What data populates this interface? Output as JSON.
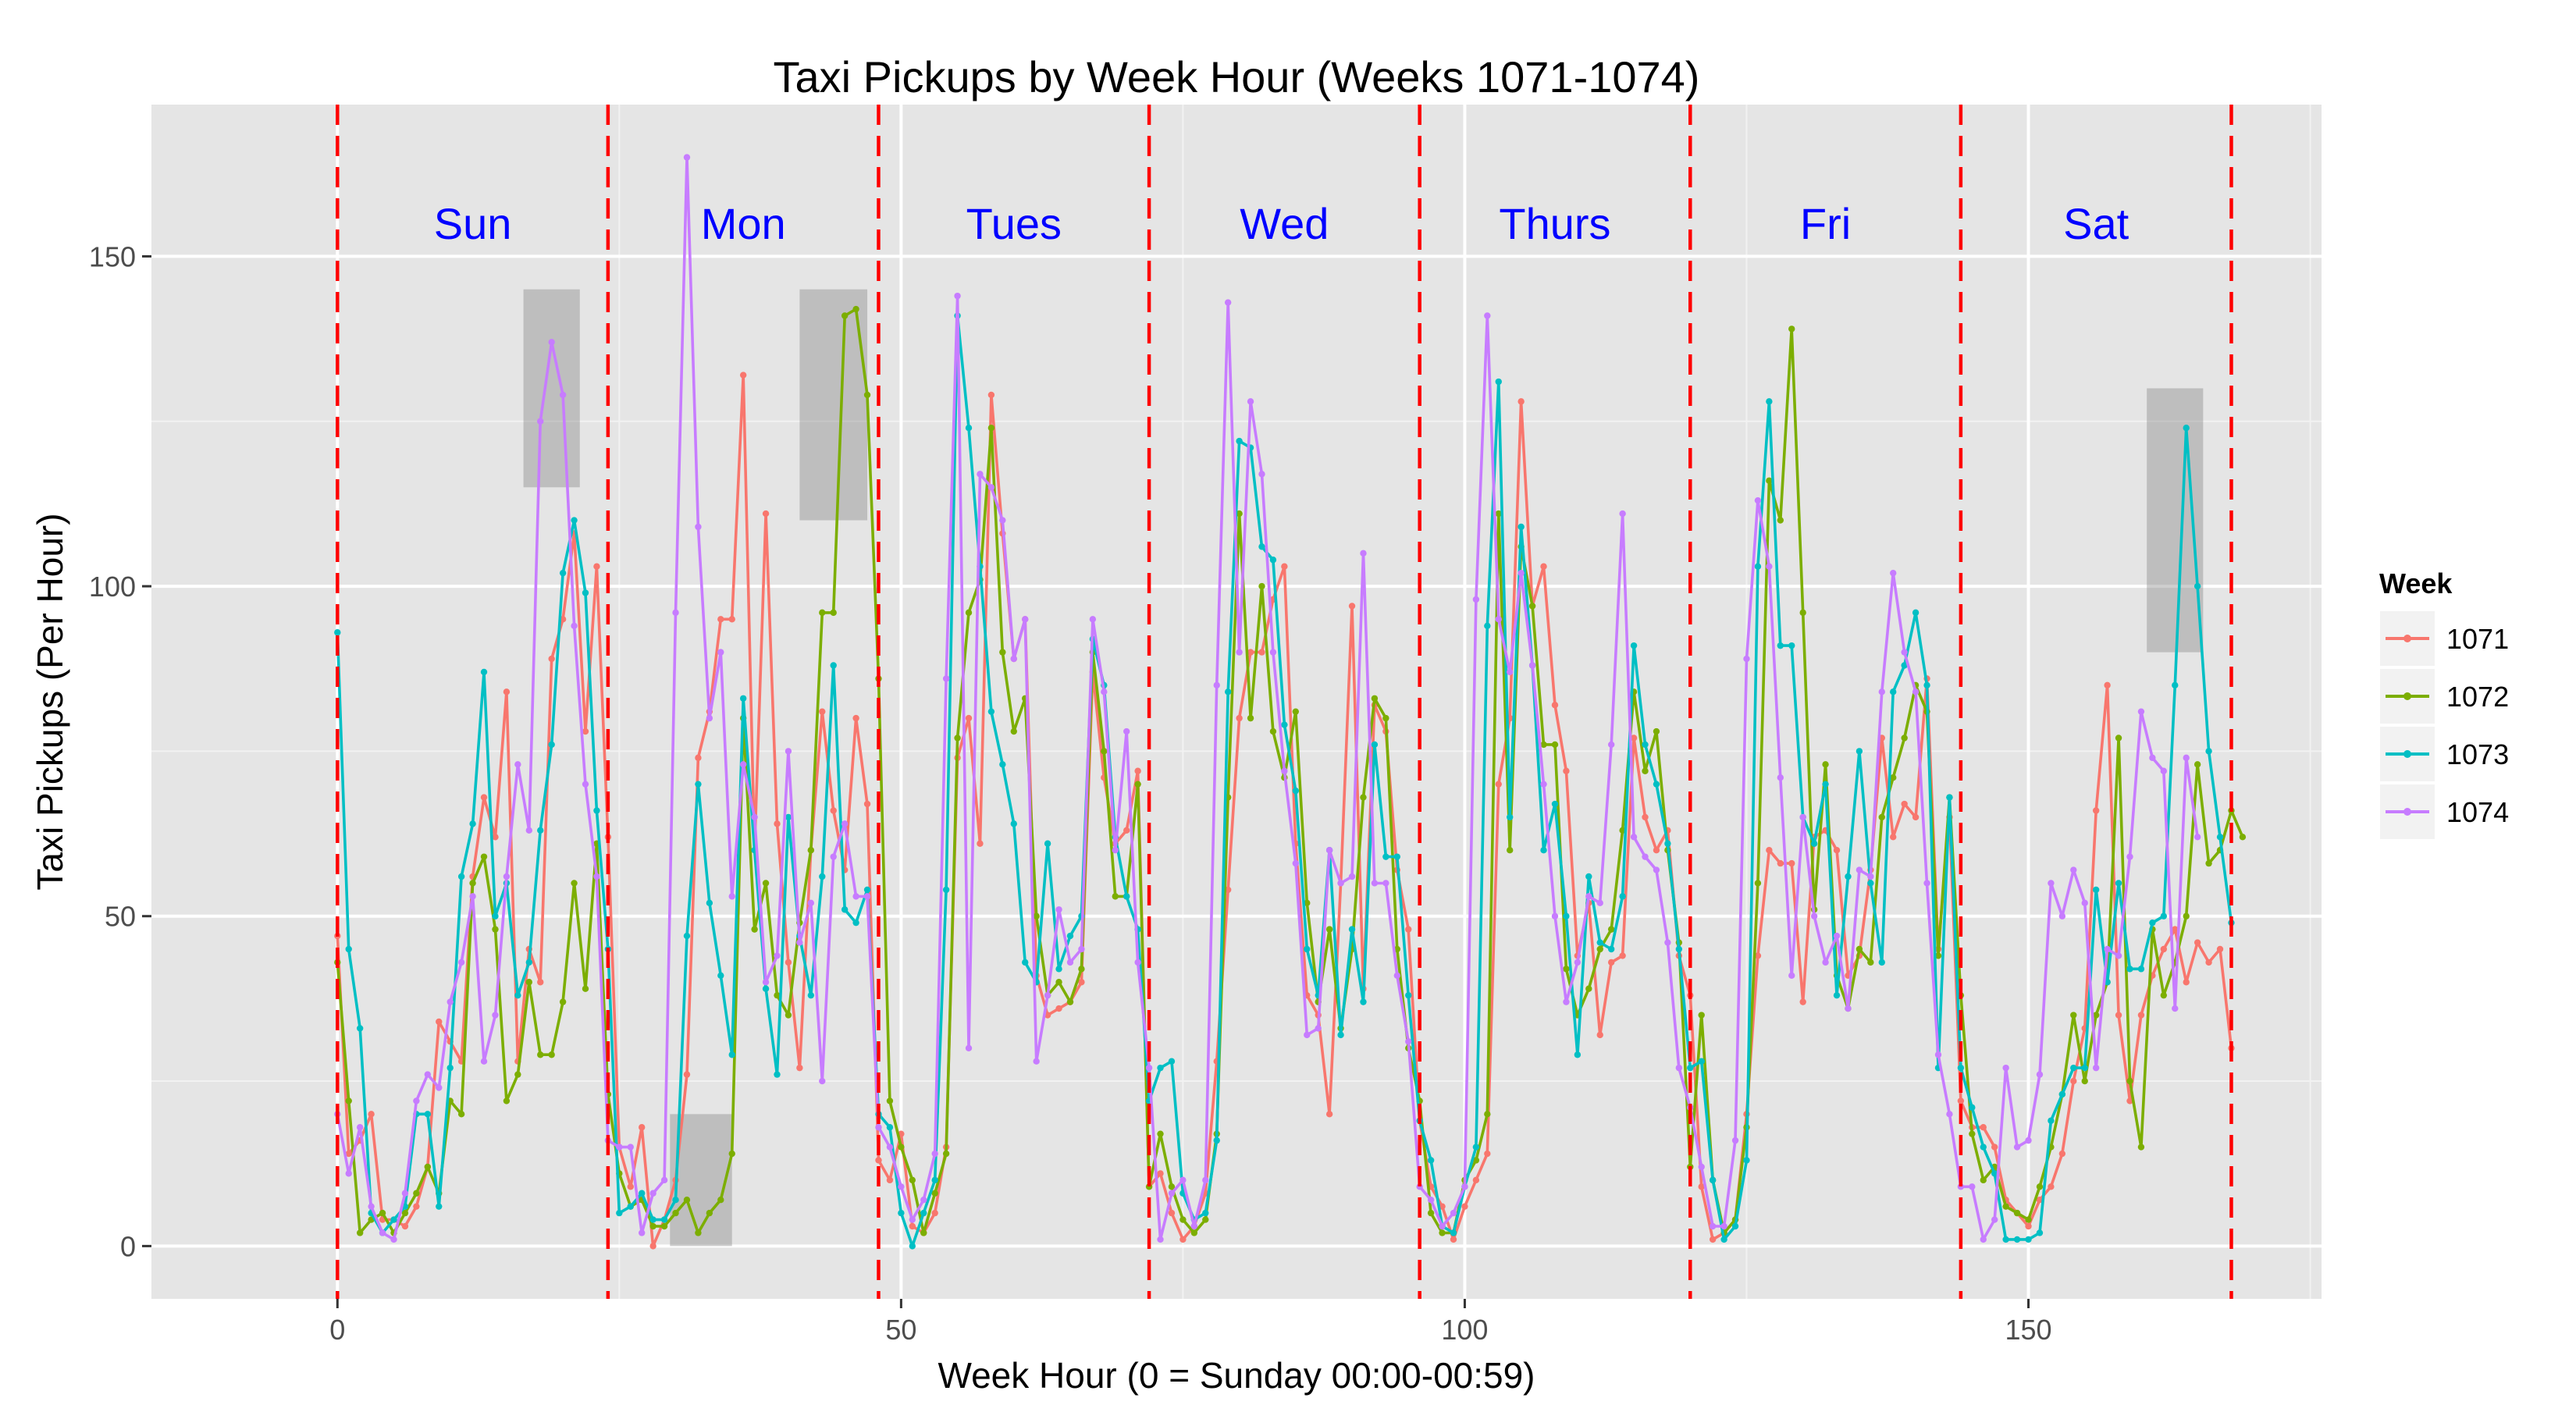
{
  "chart_data": {
    "type": "line",
    "title": "Taxi Pickups by Week Hour (Weeks 1071-1074)",
    "xlabel": "Week Hour (0 = Sunday 00:00-00:59)",
    "ylabel": "Taxi Pickups (Per Hour)",
    "xlim": [
      -16.5,
      176
    ],
    "ylim": [
      -8,
      173
    ],
    "xticks": [
      0,
      50,
      100,
      150
    ],
    "yticks": [
      0,
      50,
      100,
      150
    ],
    "grid": true,
    "background": "#E5E5E5",
    "legend": {
      "title": "Week",
      "position": "right"
    },
    "day_dividers": [
      0,
      24,
      48,
      72,
      96,
      120,
      144,
      168
    ],
    "day_divider_color": "#FF0000",
    "day_labels": [
      {
        "text": "Sun",
        "x": 12
      },
      {
        "text": "Mon",
        "x": 36
      },
      {
        "text": "Tues",
        "x": 60
      },
      {
        "text": "Wed",
        "x": 84
      },
      {
        "text": "Thurs",
        "x": 108
      },
      {
        "text": "Fri",
        "x": 132
      },
      {
        "text": "Sat",
        "x": 156
      }
    ],
    "day_label_color": "#0000FF",
    "highlights": [
      {
        "x0": 16.5,
        "x1": 21.5,
        "y0": 115,
        "y1": 145
      },
      {
        "x0": 29.5,
        "x1": 35,
        "y0": 0,
        "y1": 20
      },
      {
        "x0": 41,
        "x1": 47,
        "y0": 110,
        "y1": 145
      },
      {
        "x0": 160.5,
        "x1": 165.5,
        "y0": 90,
        "y1": 130
      }
    ],
    "series": [
      {
        "name": "1071",
        "color": "#F8766D",
        "values": [
          47,
          14,
          16,
          20,
          4,
          4,
          3,
          6,
          12,
          34,
          31,
          28,
          56,
          68,
          62,
          84,
          28,
          45,
          40,
          89,
          95,
          108,
          78,
          103,
          62,
          15,
          9,
          18,
          0,
          4,
          10,
          26,
          74,
          81,
          95,
          95,
          132,
          60,
          111,
          64,
          43,
          27,
          60,
          81,
          66,
          57,
          80,
          67,
          13,
          10,
          17,
          3,
          2,
          5,
          15,
          74,
          80,
          61,
          129,
          108,
          89,
          95,
          41,
          35,
          36,
          37,
          40,
          87,
          71,
          61,
          63,
          72,
          9,
          11,
          5,
          1,
          3,
          8,
          28,
          54,
          80,
          90,
          90,
          98,
          103,
          61,
          38,
          35,
          20,
          55,
          97,
          39,
          82,
          78,
          57,
          48,
          19,
          9,
          6,
          1,
          6,
          10,
          14,
          70,
          80,
          128,
          97,
          103,
          82,
          72,
          44,
          52,
          32,
          43,
          44,
          77,
          65,
          60,
          63,
          44,
          38,
          9,
          1,
          2,
          4,
          20,
          44,
          60,
          58,
          58,
          37,
          62,
          63,
          60,
          41,
          44,
          57,
          77,
          62,
          67,
          65,
          86,
          45,
          65,
          22,
          18,
          18,
          15,
          7,
          5,
          3,
          7,
          9,
          14,
          25,
          33,
          66,
          85,
          35,
          22,
          35,
          41,
          45,
          48,
          40,
          46,
          43,
          45,
          30
        ]
      },
      {
        "name": "1072",
        "color": "#7CAE00",
        "values": [
          43,
          22,
          2,
          4,
          5,
          2,
          5,
          8,
          12,
          8,
          22,
          20,
          55,
          59,
          48,
          22,
          26,
          40,
          29,
          29,
          37,
          55,
          39,
          61,
          23,
          11,
          6,
          7,
          3,
          3,
          5,
          7,
          2,
          5,
          7,
          14,
          80,
          48,
          55,
          38,
          35,
          49,
          60,
          96,
          96,
          141,
          142,
          129,
          86,
          22,
          15,
          10,
          2,
          8,
          14,
          77,
          96,
          101,
          124,
          90,
          78,
          83,
          50,
          38,
          40,
          37,
          42,
          90,
          75,
          53,
          53,
          70,
          9,
          17,
          9,
          4,
          2,
          4,
          17,
          68,
          111,
          80,
          100,
          78,
          71,
          81,
          52,
          37,
          48,
          33,
          45,
          68,
          83,
          80,
          45,
          30,
          22,
          5,
          2,
          2,
          10,
          13,
          20,
          111,
          60,
          106,
          97,
          76,
          76,
          42,
          35,
          39,
          45,
          48,
          63,
          84,
          72,
          78,
          60,
          46,
          12,
          35,
          10,
          2,
          4,
          18,
          55,
          116,
          110,
          139,
          96,
          51,
          73,
          41,
          36,
          45,
          43,
          65,
          71,
          77,
          85,
          81,
          44,
          68,
          38,
          17,
          10,
          12,
          6,
          5,
          4,
          9,
          15,
          23,
          35,
          25,
          35,
          40,
          77,
          25,
          15,
          48,
          38,
          43,
          50,
          73,
          58,
          60,
          66,
          62
        ]
      },
      {
        "name": "1073",
        "color": "#00BFC4",
        "values": [
          93,
          45,
          33,
          5,
          2,
          4,
          6,
          20,
          20,
          6,
          27,
          56,
          64,
          87,
          50,
          55,
          38,
          43,
          63,
          76,
          102,
          110,
          99,
          66,
          45,
          5,
          6,
          8,
          4,
          4,
          7,
          47,
          70,
          52,
          41,
          29,
          83,
          60,
          39,
          26,
          65,
          47,
          38,
          56,
          88,
          51,
          49,
          54,
          20,
          18,
          5,
          0,
          5,
          10,
          54,
          141,
          124,
          103,
          81,
          73,
          64,
          43,
          40,
          61,
          42,
          47,
          50,
          92,
          85,
          62,
          53,
          48,
          22,
          27,
          28,
          8,
          4,
          5,
          16,
          84,
          122,
          121,
          106,
          104,
          79,
          69,
          45,
          38,
          60,
          32,
          48,
          37,
          76,
          59,
          59,
          38,
          19,
          13,
          3,
          2,
          9,
          15,
          94,
          131,
          65,
          109,
          88,
          60,
          67,
          50,
          29,
          56,
          46,
          45,
          53,
          91,
          76,
          70,
          61,
          45,
          27,
          28,
          10,
          1,
          3,
          13,
          103,
          128,
          91,
          91,
          65,
          61,
          70,
          38,
          56,
          75,
          55,
          43,
          84,
          88,
          96,
          85,
          27,
          68,
          27,
          21,
          15,
          11,
          1,
          1,
          1,
          2,
          19,
          23,
          27,
          27,
          54,
          40,
          55,
          42,
          42,
          49,
          50,
          85,
          124,
          100,
          75,
          62,
          49
        ]
      },
      {
        "name": "1074",
        "color": "#C77CFF",
        "values": [
          20,
          11,
          18,
          6,
          2,
          1,
          8,
          22,
          26,
          24,
          37,
          43,
          53,
          28,
          35,
          56,
          73,
          63,
          125,
          137,
          129,
          94,
          70,
          56,
          16,
          15,
          15,
          2,
          8,
          10,
          96,
          165,
          109,
          80,
          90,
          53,
          73,
          65,
          40,
          44,
          75,
          46,
          52,
          25,
          59,
          64,
          53,
          53,
          18,
          15,
          9,
          4,
          7,
          14,
          86,
          144,
          30,
          117,
          115,
          110,
          89,
          95,
          28,
          38,
          51,
          43,
          45,
          95,
          84,
          60,
          78,
          43,
          27,
          1,
          8,
          10,
          3,
          10,
          85,
          143,
          90,
          128,
          117,
          90,
          72,
          58,
          32,
          33,
          60,
          55,
          56,
          105,
          55,
          55,
          41,
          31,
          9,
          7,
          3,
          5,
          9,
          98,
          141,
          95,
          87,
          102,
          88,
          70,
          50,
          37,
          43,
          53,
          52,
          76,
          111,
          62,
          59,
          57,
          46,
          27,
          21,
          12,
          3,
          3,
          16,
          89,
          113,
          103,
          71,
          41,
          65,
          50,
          43,
          47,
          36,
          57,
          56,
          84,
          102,
          90,
          84,
          55,
          29,
          20,
          9,
          9,
          1,
          4,
          27,
          15,
          16,
          26,
          55,
          50,
          57,
          52,
          27,
          45,
          44,
          59,
          81,
          74,
          72,
          36,
          74,
          62
        ]
      }
    ]
  }
}
